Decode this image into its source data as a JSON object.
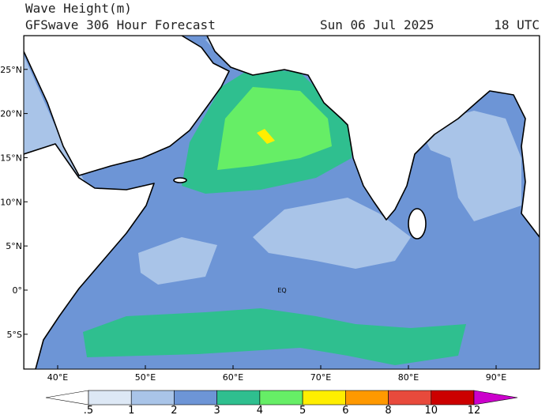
{
  "header": {
    "title": "Wave Height(m)",
    "subtitle": "GFSwave 306 Hour Forecast",
    "date": "Sun 06 Jul 2025",
    "time": "18 UTC"
  },
  "map": {
    "lat_ticks": [
      {
        "value": 25,
        "label": "25°N"
      },
      {
        "value": 20,
        "label": "20°N"
      },
      {
        "value": 15,
        "label": "15°N"
      },
      {
        "value": 10,
        "label": "10°N"
      },
      {
        "value": 5,
        "label": "5°N"
      },
      {
        "value": 0,
        "label": "0°"
      },
      {
        "value": -5,
        "label": "5°S"
      }
    ],
    "lon_ticks": [
      {
        "value": 40,
        "label": "40°E"
      },
      {
        "value": 50,
        "label": "50°E"
      },
      {
        "value": 60,
        "label": "60°E"
      },
      {
        "value": 70,
        "label": "70°E"
      },
      {
        "value": 80,
        "label": "80°E"
      },
      {
        "value": 90,
        "label": "90°E"
      }
    ],
    "equator_label": "EQ"
  },
  "colorbar": {
    "labels": [
      ".5",
      "1",
      "2",
      "3",
      "4",
      "5",
      "6",
      "8",
      "10",
      "12"
    ],
    "colors": [
      "#ffffff",
      "#dde8f5",
      "#a9c4e8",
      "#6d95d6",
      "#2fbf8f",
      "#66ee66",
      "#ffee00",
      "#ff9900",
      "#e84a3c",
      "#cc0000",
      "#cc00cc"
    ]
  }
}
